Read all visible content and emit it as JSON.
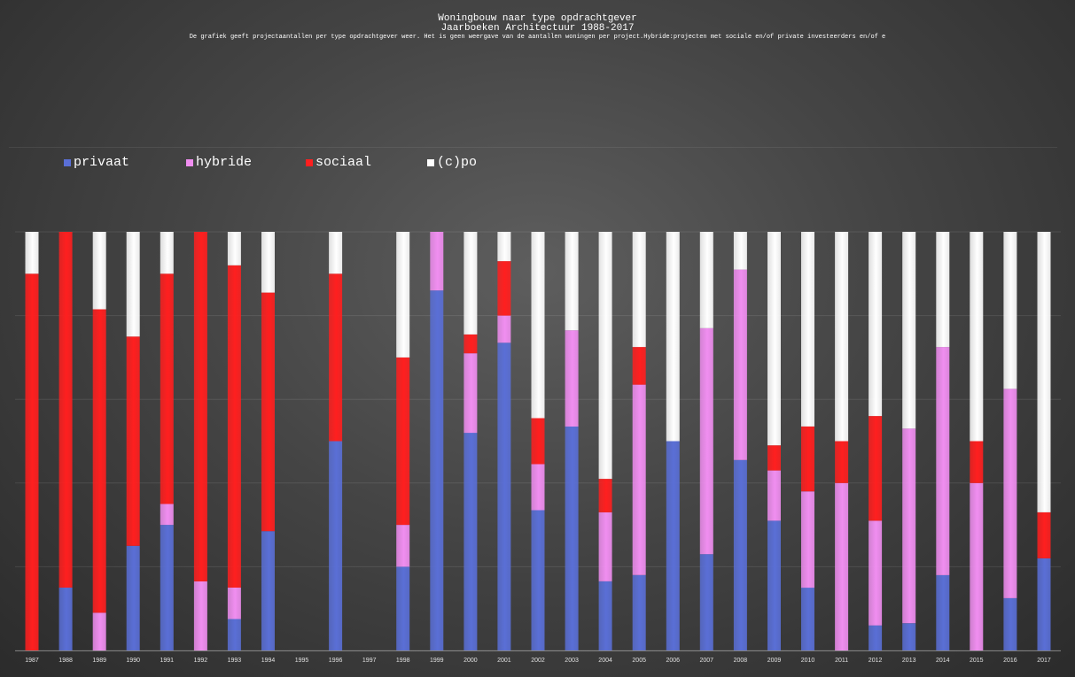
{
  "chart_data": {
    "type": "bar",
    "stacked": true,
    "normalized": true,
    "title": "Woningbouw naar type opdrachtgever",
    "subtitle": "Jaarboeken Architectuur 1988-2017",
    "description": "De grafiek geeft projectaantallen per type opdrachtgever weer. Het is geen weergave van de aantallen woningen per project.Hybride:projecten met sociale en/of private investeerders en/of e",
    "legend_position": "top-left",
    "grid": true,
    "xlabel": "",
    "ylabel": "",
    "ylim": [
      0,
      1
    ],
    "categories": [
      "1987",
      "1988",
      "1989",
      "1990",
      "1991",
      "1992",
      "1993",
      "1994",
      "1995",
      "1996",
      "1997",
      "1998",
      "1999",
      "2000",
      "2001",
      "2002",
      "2003",
      "2004",
      "2005",
      "2006",
      "2007",
      "2008",
      "2009",
      "2010",
      "2011",
      "2012",
      "2013",
      "2014",
      "2015",
      "2016",
      "2017"
    ],
    "series": [
      {
        "name": "privaat",
        "color": "#5a6fd6",
        "values": [
          0.0,
          0.15,
          0.0,
          0.25,
          0.3,
          0.0,
          0.075,
          0.285,
          0,
          0.5,
          0,
          0.2,
          0.86,
          0.52,
          0.735,
          0.335,
          0.535,
          0.165,
          0.18,
          0.5,
          0.23,
          0.455,
          0.31,
          0.15,
          0.0,
          0.06,
          0.065,
          0.18,
          0.0,
          0.125,
          0.22
        ]
      },
      {
        "name": "hybride",
        "color": "#f08ef0",
        "values": [
          0.0,
          0.0,
          0.09,
          0.0,
          0.05,
          0.165,
          0.075,
          0.0,
          0,
          0.0,
          0,
          0.1,
          0.14,
          0.19,
          0.065,
          0.11,
          0.23,
          0.165,
          0.455,
          0.0,
          0.54,
          0.455,
          0.12,
          0.23,
          0.4,
          0.25,
          0.465,
          0.545,
          0.4,
          0.5,
          0.0
        ]
      },
      {
        "name": "sociaal",
        "color": "#ff1f1f",
        "values": [
          0.9,
          0.85,
          0.725,
          0.5,
          0.55,
          0.835,
          0.77,
          0.57,
          0,
          0.4,
          0,
          0.4,
          0.0,
          0.045,
          0.13,
          0.11,
          0.0,
          0.08,
          0.09,
          0.0,
          0.0,
          0.0,
          0.06,
          0.155,
          0.1,
          0.25,
          0.0,
          0.0,
          0.1,
          0.0,
          0.11
        ]
      },
      {
        "name": "(c)po",
        "color": "#ffffff",
        "values": [
          0.1,
          0.0,
          0.185,
          0.25,
          0.1,
          0.0,
          0.08,
          0.145,
          0,
          0.1,
          0,
          0.3,
          0.0,
          0.245,
          0.07,
          0.445,
          0.235,
          0.59,
          0.275,
          0.5,
          0.23,
          0.09,
          0.51,
          0.465,
          0.5,
          0.44,
          0.47,
          0.275,
          0.5,
          0.375,
          0.67
        ]
      }
    ]
  }
}
